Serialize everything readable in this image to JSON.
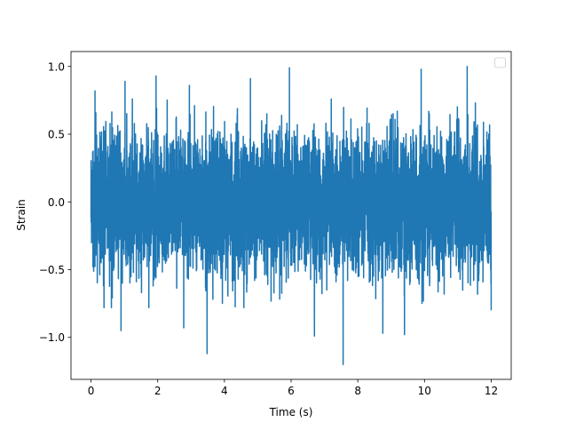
{
  "chart_data": {
    "type": "line",
    "title": "",
    "xlabel": "Time (s)",
    "ylabel": "Strain",
    "xlim": [
      -0.6,
      12.6
    ],
    "ylim": [
      -1.31,
      1.11
    ],
    "x_ticks": [
      0,
      2,
      4,
      6,
      8,
      10,
      12
    ],
    "x_tick_labels": [
      "0",
      "2",
      "4",
      "6",
      "8",
      "10",
      "12"
    ],
    "y_ticks": [
      -1.0,
      -0.5,
      0.0,
      0.5,
      1.0
    ],
    "y_tick_labels": [
      "−1.0",
      "−0.5",
      "0.0",
      "0.5",
      "1.0"
    ],
    "grid": false,
    "legend": {
      "placement": "top-right",
      "entries": []
    },
    "series": [
      {
        "color": "#1f77b4",
        "sample_interval_s": 0.002,
        "duration_s": 12.0,
        "envelope_description": "dense noise; typical range about -0.6 to 0.65",
        "peaks": [
          {
            "x": 0.12,
            "y": 0.82
          },
          {
            "x": 1.02,
            "y": 0.89
          },
          {
            "x": 1.95,
            "y": 0.93
          },
          {
            "x": 2.95,
            "y": 0.86
          },
          {
            "x": 4.78,
            "y": 0.91
          },
          {
            "x": 5.95,
            "y": 0.99
          },
          {
            "x": 9.9,
            "y": 0.98
          },
          {
            "x": 11.28,
            "y": 1.0
          }
        ],
        "troughs": [
          {
            "x": 0.9,
            "y": -0.95
          },
          {
            "x": 2.78,
            "y": -0.93
          },
          {
            "x": 3.48,
            "y": -1.12
          },
          {
            "x": 6.7,
            "y": -0.99
          },
          {
            "x": 7.56,
            "y": -1.2
          },
          {
            "x": 8.75,
            "y": -0.97
          },
          {
            "x": 9.4,
            "y": -0.98
          },
          {
            "x": 12.0,
            "y": -0.8
          }
        ]
      }
    ]
  }
}
